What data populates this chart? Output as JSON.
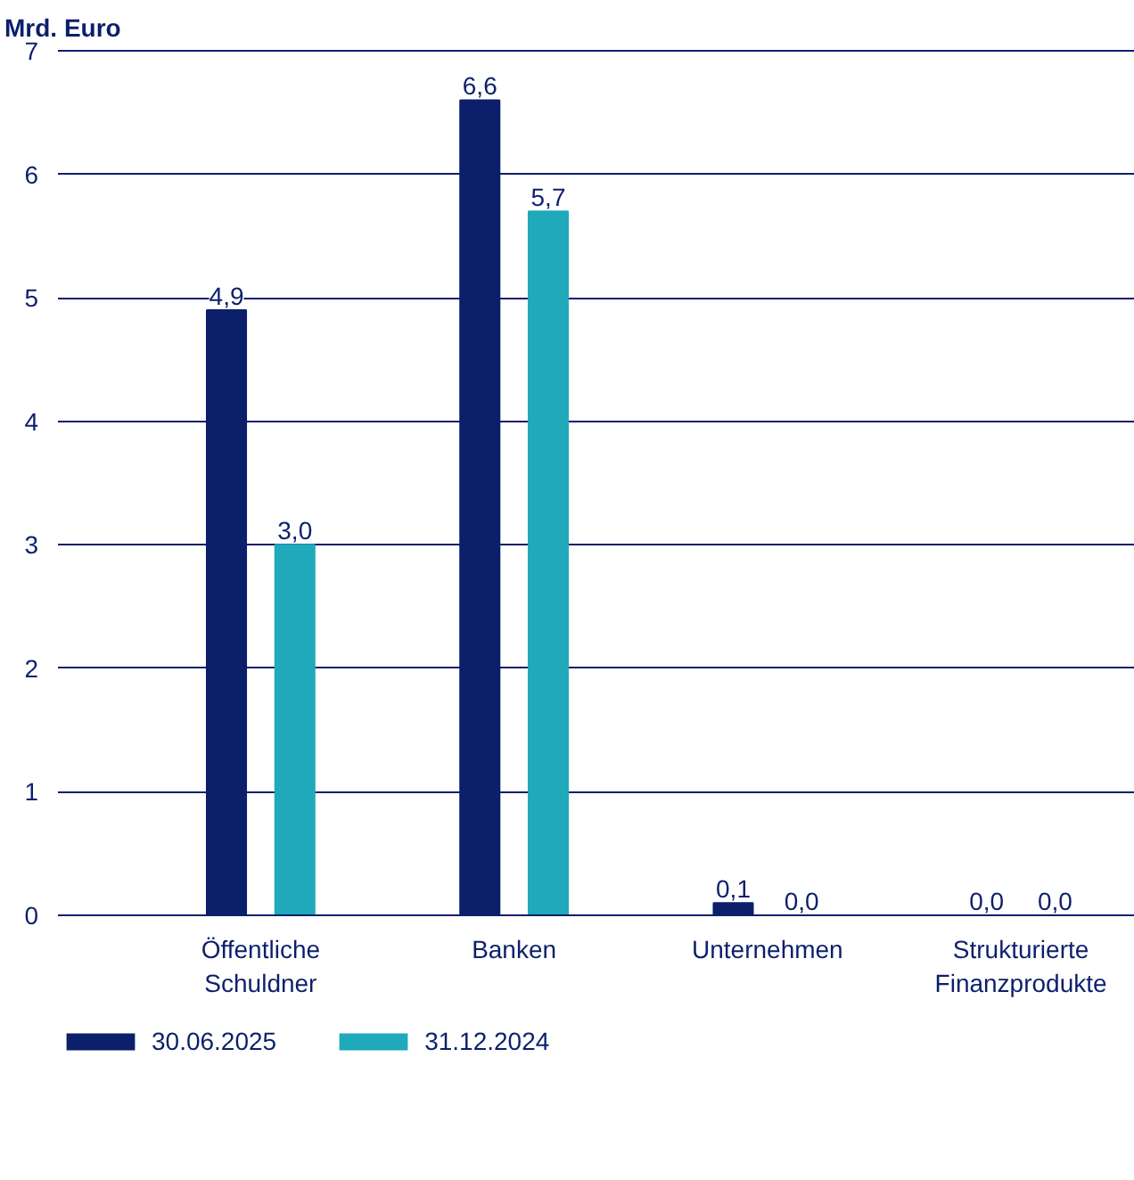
{
  "chart_data": {
    "type": "bar",
    "ylabel": "Mrd. Euro",
    "categories": [
      "Öffentliche Schuldner",
      "Banken",
      "Unternehmen",
      "Strukturierte Finanzprodukte"
    ],
    "series": [
      {
        "name": "30.06.2025",
        "color": "#0b1f6b",
        "values": [
          4.9,
          6.6,
          0.1,
          0.0
        ],
        "value_labels": [
          "4,9",
          "6,6",
          "0,1",
          "0,0"
        ]
      },
      {
        "name": "31.12.2024",
        "color": "#1fa9ba",
        "values": [
          3.0,
          5.7,
          0.0,
          0.0
        ],
        "value_labels": [
          "3,0",
          "5,7",
          "0,0",
          "0,0"
        ]
      }
    ],
    "ylim": [
      0,
      7
    ],
    "yticks": [
      0,
      1,
      2,
      3,
      4,
      5,
      6,
      7
    ],
    "grid": "y",
    "legend": "bottom left"
  }
}
